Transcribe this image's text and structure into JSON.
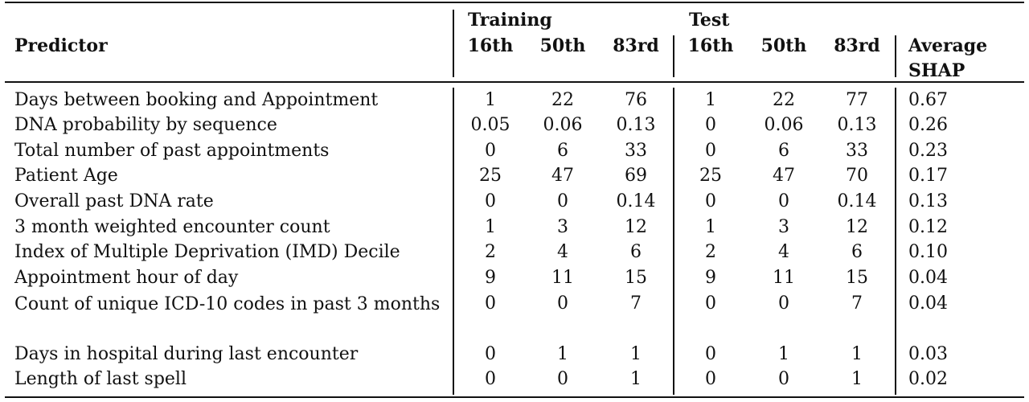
{
  "table": {
    "headers": {
      "predictor": "Predictor",
      "training": "Training",
      "test": "Test",
      "percentiles": [
        "16th",
        "50th",
        "83rd"
      ],
      "average_shap_line1": "Average",
      "average_shap_line2": "SHAP"
    },
    "rows": [
      {
        "predictor": "Days between booking and Appointment",
        "train": [
          "1",
          "22",
          "76"
        ],
        "test": [
          "1",
          "22",
          "77"
        ],
        "shap": "0.67"
      },
      {
        "predictor": "DNA probability by sequence",
        "train": [
          "0.05",
          "0.06",
          "0.13"
        ],
        "test": [
          "0",
          "0.06",
          "0.13"
        ],
        "shap": "0.26"
      },
      {
        "predictor": "Total number of past appointments",
        "train": [
          "0",
          "6",
          "33"
        ],
        "test": [
          "0",
          "6",
          "33"
        ],
        "shap": "0.23"
      },
      {
        "predictor": "Patient Age",
        "train": [
          "25",
          "47",
          "69"
        ],
        "test": [
          "25",
          "47",
          "70"
        ],
        "shap": "0.17"
      },
      {
        "predictor": "Overall past DNA rate",
        "train": [
          "0",
          "0",
          "0.14"
        ],
        "test": [
          "0",
          "0",
          "0.14"
        ],
        "shap": "0.13"
      },
      {
        "predictor": "3 month weighted encounter count",
        "train": [
          "1",
          "3",
          "12"
        ],
        "test": [
          "1",
          "3",
          "12"
        ],
        "shap": "0.12"
      },
      {
        "predictor": "Index of Multiple Deprivation (IMD) Decile",
        "train": [
          "2",
          "4",
          "6"
        ],
        "test": [
          "2",
          "4",
          "6"
        ],
        "shap": "0.10"
      },
      {
        "predictor": "Appointment hour of day",
        "train": [
          "9",
          "11",
          "15"
        ],
        "test": [
          "9",
          "11",
          "15"
        ],
        "shap": "0.04"
      },
      {
        "predictor": "Count of unique ICD-10 codes in past 3 months",
        "train": [
          "0",
          "0",
          "7"
        ],
        "test": [
          "0",
          "0",
          "7"
        ],
        "shap": "0.04"
      },
      {
        "predictor": "Days in hospital during last encounter",
        "train": [
          "0",
          "1",
          "1"
        ],
        "test": [
          "0",
          "1",
          "1"
        ],
        "shap": "0.03"
      },
      {
        "predictor": "Length of last spell",
        "train": [
          "0",
          "0",
          "1"
        ],
        "test": [
          "0",
          "0",
          "1"
        ],
        "shap": "0.02"
      }
    ]
  }
}
